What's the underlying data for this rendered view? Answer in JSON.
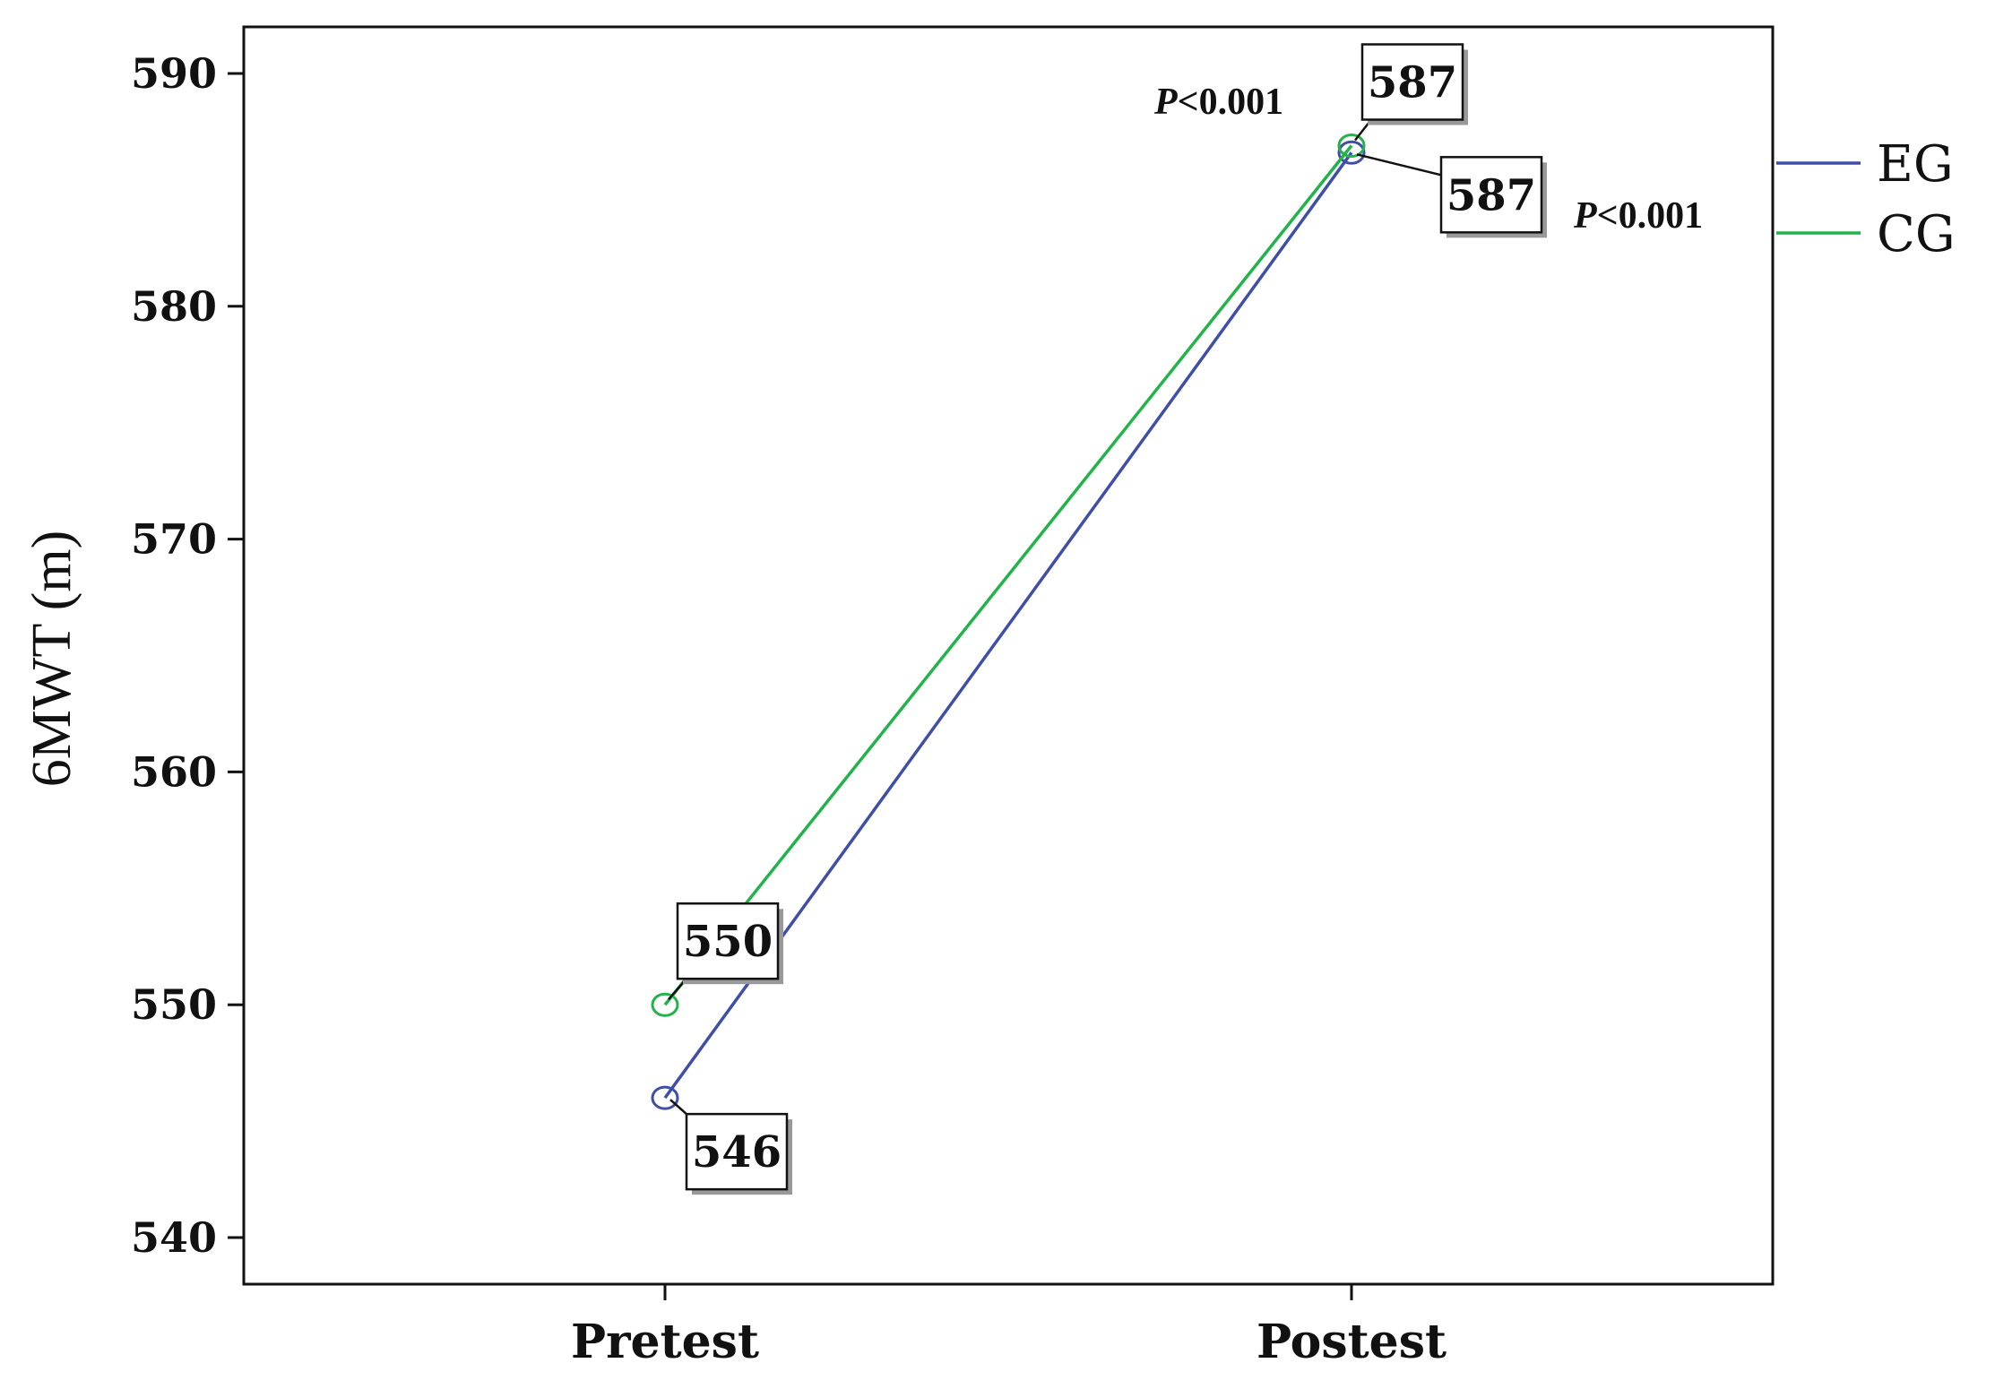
{
  "chart_data": {
    "type": "line",
    "title": "",
    "xlabel": "",
    "ylabel": "6MWT (m)",
    "categories": [
      "Pretest",
      "Postest"
    ],
    "ylim": [
      538,
      592
    ],
    "yticks": [
      540,
      550,
      560,
      570,
      580,
      590
    ],
    "grid": false,
    "legend_position": "right",
    "series": [
      {
        "name": "EG",
        "color": "#3f4fa8",
        "values": [
          546,
          586.6
        ],
        "labels": [
          "546",
          "587"
        ]
      },
      {
        "name": "CG",
        "color": "#22b34a",
        "values": [
          550,
          586.9
        ],
        "labels": [
          "550",
          "587"
        ]
      }
    ],
    "annotations": [
      {
        "text_italic": "P",
        "text": "<0.001",
        "series": "CG",
        "point": 1
      },
      {
        "text_italic": "P",
        "text": "<0.001",
        "series": "EG",
        "point": 1
      }
    ]
  }
}
